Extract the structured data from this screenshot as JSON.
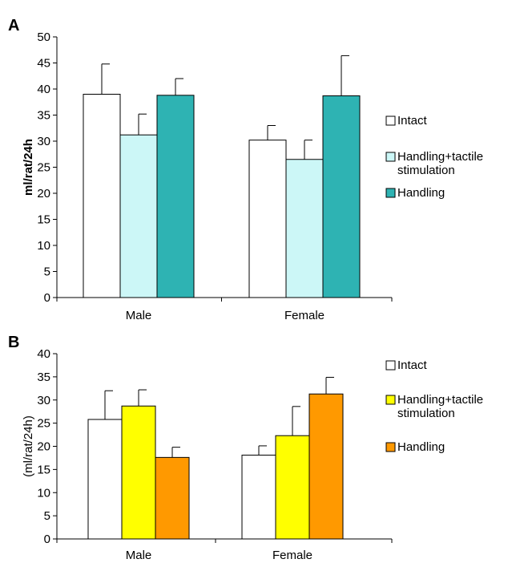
{
  "chart_data": [
    {
      "panel": "A",
      "type": "bar",
      "ylabel": "ml/rat/24h",
      "ylim": [
        0,
        50
      ],
      "yticks": [
        0,
        5,
        10,
        15,
        20,
        25,
        30,
        35,
        40,
        45,
        50
      ],
      "categories": [
        "Male",
        "Female"
      ],
      "series": [
        {
          "name": "Intact",
          "values": [
            39,
            30.2
          ],
          "errors": [
            5.8,
            2.8
          ],
          "color": "#ffffff"
        },
        {
          "name": "Handling+tactile stimulation",
          "values": [
            31.2,
            26.5
          ],
          "errors": [
            4,
            3.7
          ],
          "color": "#ccf7f7"
        },
        {
          "name": "Handling",
          "values": [
            38.8,
            38.7
          ],
          "errors": [
            3.2,
            7.7
          ],
          "color": "#2eb3b3"
        }
      ],
      "legend_position": "right",
      "grid": false
    },
    {
      "panel": "B",
      "type": "bar",
      "ylabel": "(ml/rat/24h)",
      "ylim": [
        0,
        40
      ],
      "yticks": [
        0,
        5,
        10,
        15,
        20,
        25,
        30,
        35,
        40
      ],
      "categories": [
        "Male",
        "Female"
      ],
      "series": [
        {
          "name": "Intact",
          "values": [
            25.8,
            18.1
          ],
          "errors": [
            6.2,
            2
          ],
          "color": "#ffffff"
        },
        {
          "name": "Handling+tactile stimulation",
          "values": [
            28.7,
            22.3
          ],
          "errors": [
            3.5,
            6.3
          ],
          "color": "#ffff00"
        },
        {
          "name": "Handling",
          "values": [
            17.6,
            31.3
          ],
          "errors": [
            2.2,
            3.6
          ],
          "color": "#ff9900"
        }
      ],
      "legend_position": "right",
      "grid": false
    }
  ]
}
